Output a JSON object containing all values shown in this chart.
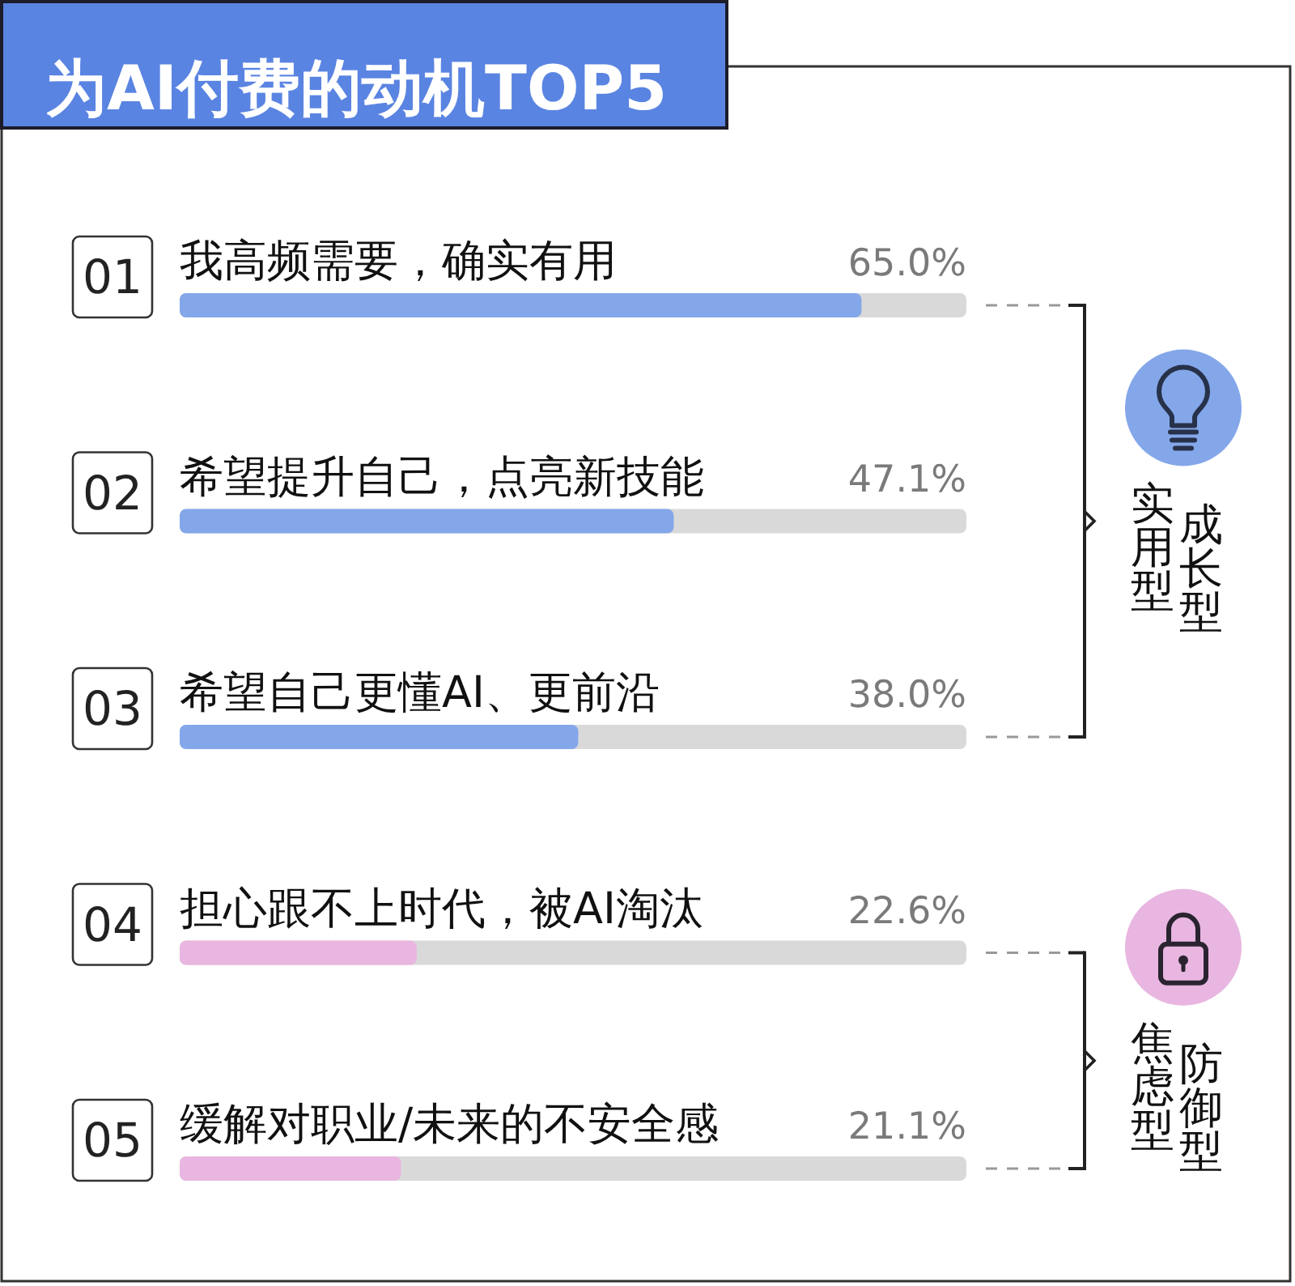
{
  "chart_data": {
    "type": "bar",
    "orientation": "horizontal",
    "title": "为AI付费的动机TOP5",
    "categories": [
      "我高频需要，确实有用",
      "希望提升自己，点亮新技能",
      "希望自己更懂AI、更前沿",
      "担心跟不上时代，被AI淘汰",
      "缓解对职业/未来的不安全感"
    ],
    "values": [
      65.0,
      47.1,
      38.0,
      22.6,
      21.1
    ],
    "colors": [
      "#84a7ea",
      "#84a7ea",
      "#84a7ea",
      "#e8b6e0",
      "#e8b6e0"
    ],
    "value_labels": [
      "65.0%",
      "47.1%",
      "38.0%",
      "22.6%",
      "21.1%"
    ],
    "xlim": [
      0,
      75
    ],
    "tick_labels": "y",
    "annotations": [
      "01",
      "02",
      "03",
      "04",
      "05",
      "实用型",
      "成长型",
      "焦虑型",
      "防御型"
    ]
  }
}
